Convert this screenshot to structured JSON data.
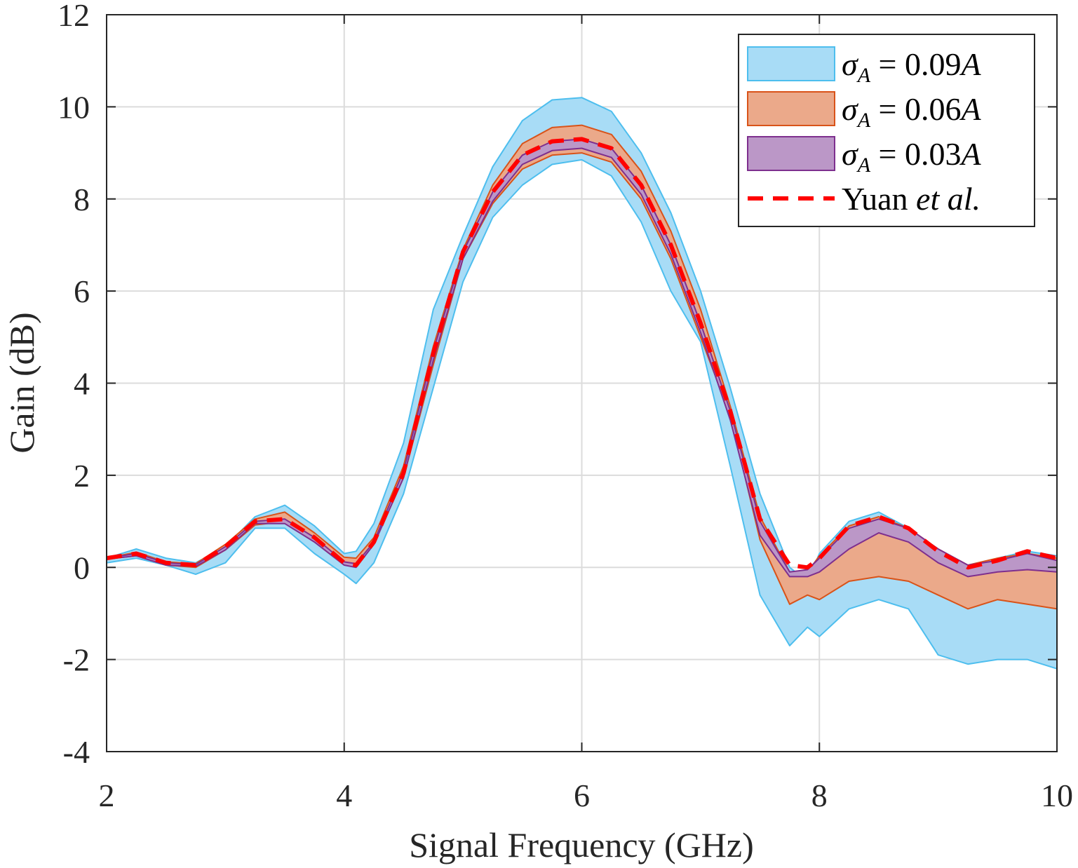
{
  "chart_data": {
    "type": "area",
    "title": "",
    "xlabel": "Signal Frequency (GHz)",
    "ylabel": "Gain (dB)",
    "xlim": [
      2,
      10
    ],
    "ylim": [
      -4,
      12
    ],
    "xticks": [
      2,
      4,
      6,
      8,
      10
    ],
    "xtick_labels": [
      "2",
      "4",
      "6",
      "8",
      "10"
    ],
    "yticks": [
      -4,
      -2,
      0,
      2,
      4,
      6,
      8,
      10,
      12
    ],
    "ytick_labels": [
      "-4",
      "-2",
      "0",
      "2",
      "4",
      "6",
      "8",
      "10",
      "12"
    ],
    "grid": true,
    "legend_position": "top-right",
    "x": [
      2.0,
      2.25,
      2.5,
      2.75,
      3.0,
      3.25,
      3.5,
      3.75,
      4.0,
      4.1,
      4.25,
      4.5,
      4.75,
      5.0,
      5.25,
      5.5,
      5.75,
      6.0,
      6.25,
      6.5,
      6.75,
      7.0,
      7.25,
      7.5,
      7.75,
      7.9,
      8.0,
      8.25,
      8.5,
      8.75,
      9.0,
      9.25,
      9.5,
      9.75,
      10.0
    ],
    "series": [
      {
        "name": "σ_A = 0.09A",
        "kind": "band",
        "color": "#4DBEEE",
        "fill": "#A8DCF6",
        "upper": [
          0.2,
          0.4,
          0.2,
          0.1,
          0.45,
          1.1,
          1.35,
          0.9,
          0.3,
          0.35,
          0.95,
          2.7,
          5.6,
          7.2,
          8.7,
          9.7,
          10.15,
          10.2,
          9.9,
          9.0,
          7.7,
          6.0,
          3.9,
          1.6,
          0.0,
          -0.3,
          0.3,
          1.0,
          1.2,
          0.85,
          0.3,
          0.0,
          0.2,
          0.35,
          0.25
        ],
        "lower": [
          0.1,
          0.2,
          0.05,
          -0.15,
          0.1,
          0.85,
          0.85,
          0.3,
          -0.15,
          -0.35,
          0.1,
          1.6,
          3.9,
          6.2,
          7.6,
          8.3,
          8.75,
          8.85,
          8.5,
          7.5,
          6.0,
          4.9,
          2.2,
          -0.6,
          -1.7,
          -1.3,
          -1.5,
          -0.9,
          -0.7,
          -0.9,
          -1.9,
          -2.1,
          -2.0,
          -2.0,
          -2.2
        ]
      },
      {
        "name": "σ_A = 0.06A",
        "kind": "band",
        "color": "#D95319",
        "fill": "#EBA98A",
        "upper": [
          0.2,
          0.33,
          0.12,
          0.08,
          0.5,
          1.05,
          1.2,
          0.75,
          0.22,
          0.2,
          0.65,
          2.2,
          4.8,
          6.9,
          8.3,
          9.2,
          9.55,
          9.6,
          9.4,
          8.6,
          7.3,
          5.6,
          3.5,
          1.1,
          -0.1,
          -0.1,
          0.25,
          0.9,
          1.1,
          0.85,
          0.4,
          0.05,
          0.2,
          0.3,
          0.2
        ],
        "lower": [
          0.18,
          0.25,
          0.05,
          0.0,
          0.38,
          0.92,
          1.0,
          0.55,
          0.05,
          0.05,
          0.5,
          1.95,
          4.4,
          6.7,
          7.9,
          8.65,
          8.95,
          9.0,
          8.8,
          8.0,
          6.7,
          5.0,
          3.3,
          0.6,
          -0.8,
          -0.6,
          -0.7,
          -0.3,
          -0.2,
          -0.3,
          -0.6,
          -0.9,
          -0.7,
          -0.8,
          -0.9
        ]
      },
      {
        "name": "σ_A = 0.03A",
        "kind": "band",
        "color": "#7E2F8E",
        "fill": "#BB97C7",
        "upper": [
          0.2,
          0.3,
          0.1,
          0.06,
          0.45,
          1.0,
          1.05,
          0.65,
          0.12,
          0.08,
          0.55,
          2.1,
          4.7,
          6.85,
          8.15,
          8.95,
          9.25,
          9.3,
          9.1,
          8.3,
          7.0,
          5.3,
          3.4,
          1.0,
          -0.1,
          -0.05,
          0.2,
          0.85,
          1.05,
          0.85,
          0.4,
          0.05,
          0.15,
          0.3,
          0.15
        ],
        "lower": [
          0.18,
          0.25,
          0.05,
          0.02,
          0.38,
          0.95,
          0.95,
          0.55,
          0.05,
          0.0,
          0.5,
          1.95,
          4.5,
          6.7,
          7.95,
          8.75,
          9.05,
          9.1,
          8.9,
          8.1,
          6.8,
          5.1,
          3.2,
          0.7,
          -0.2,
          -0.2,
          -0.1,
          0.4,
          0.75,
          0.55,
          0.1,
          -0.2,
          -0.1,
          -0.05,
          -0.1
        ]
      },
      {
        "name": "Yuan et al.",
        "kind": "line",
        "color": "#FF0000",
        "dash": "dashed",
        "values": [
          0.2,
          0.3,
          0.1,
          0.05,
          0.45,
          1.0,
          1.05,
          0.65,
          0.1,
          0.05,
          0.55,
          2.05,
          4.65,
          6.85,
          8.15,
          8.95,
          9.25,
          9.3,
          9.1,
          8.3,
          7.0,
          5.3,
          3.4,
          1.05,
          0.05,
          0.0,
          0.2,
          0.9,
          1.1,
          0.85,
          0.35,
          0.0,
          0.15,
          0.35,
          0.2
        ]
      }
    ],
    "legend": [
      {
        "sym": "σ",
        "sub": "A",
        "rest": " = 0.09",
        "var": "A"
      },
      {
        "sym": "σ",
        "sub": "A",
        "rest": " = 0.06",
        "var": "A"
      },
      {
        "sym": "σ",
        "sub": "A",
        "rest": " = 0.03",
        "var": "A"
      },
      {
        "plain": "Yuan ",
        "ital": "et al."
      }
    ]
  }
}
